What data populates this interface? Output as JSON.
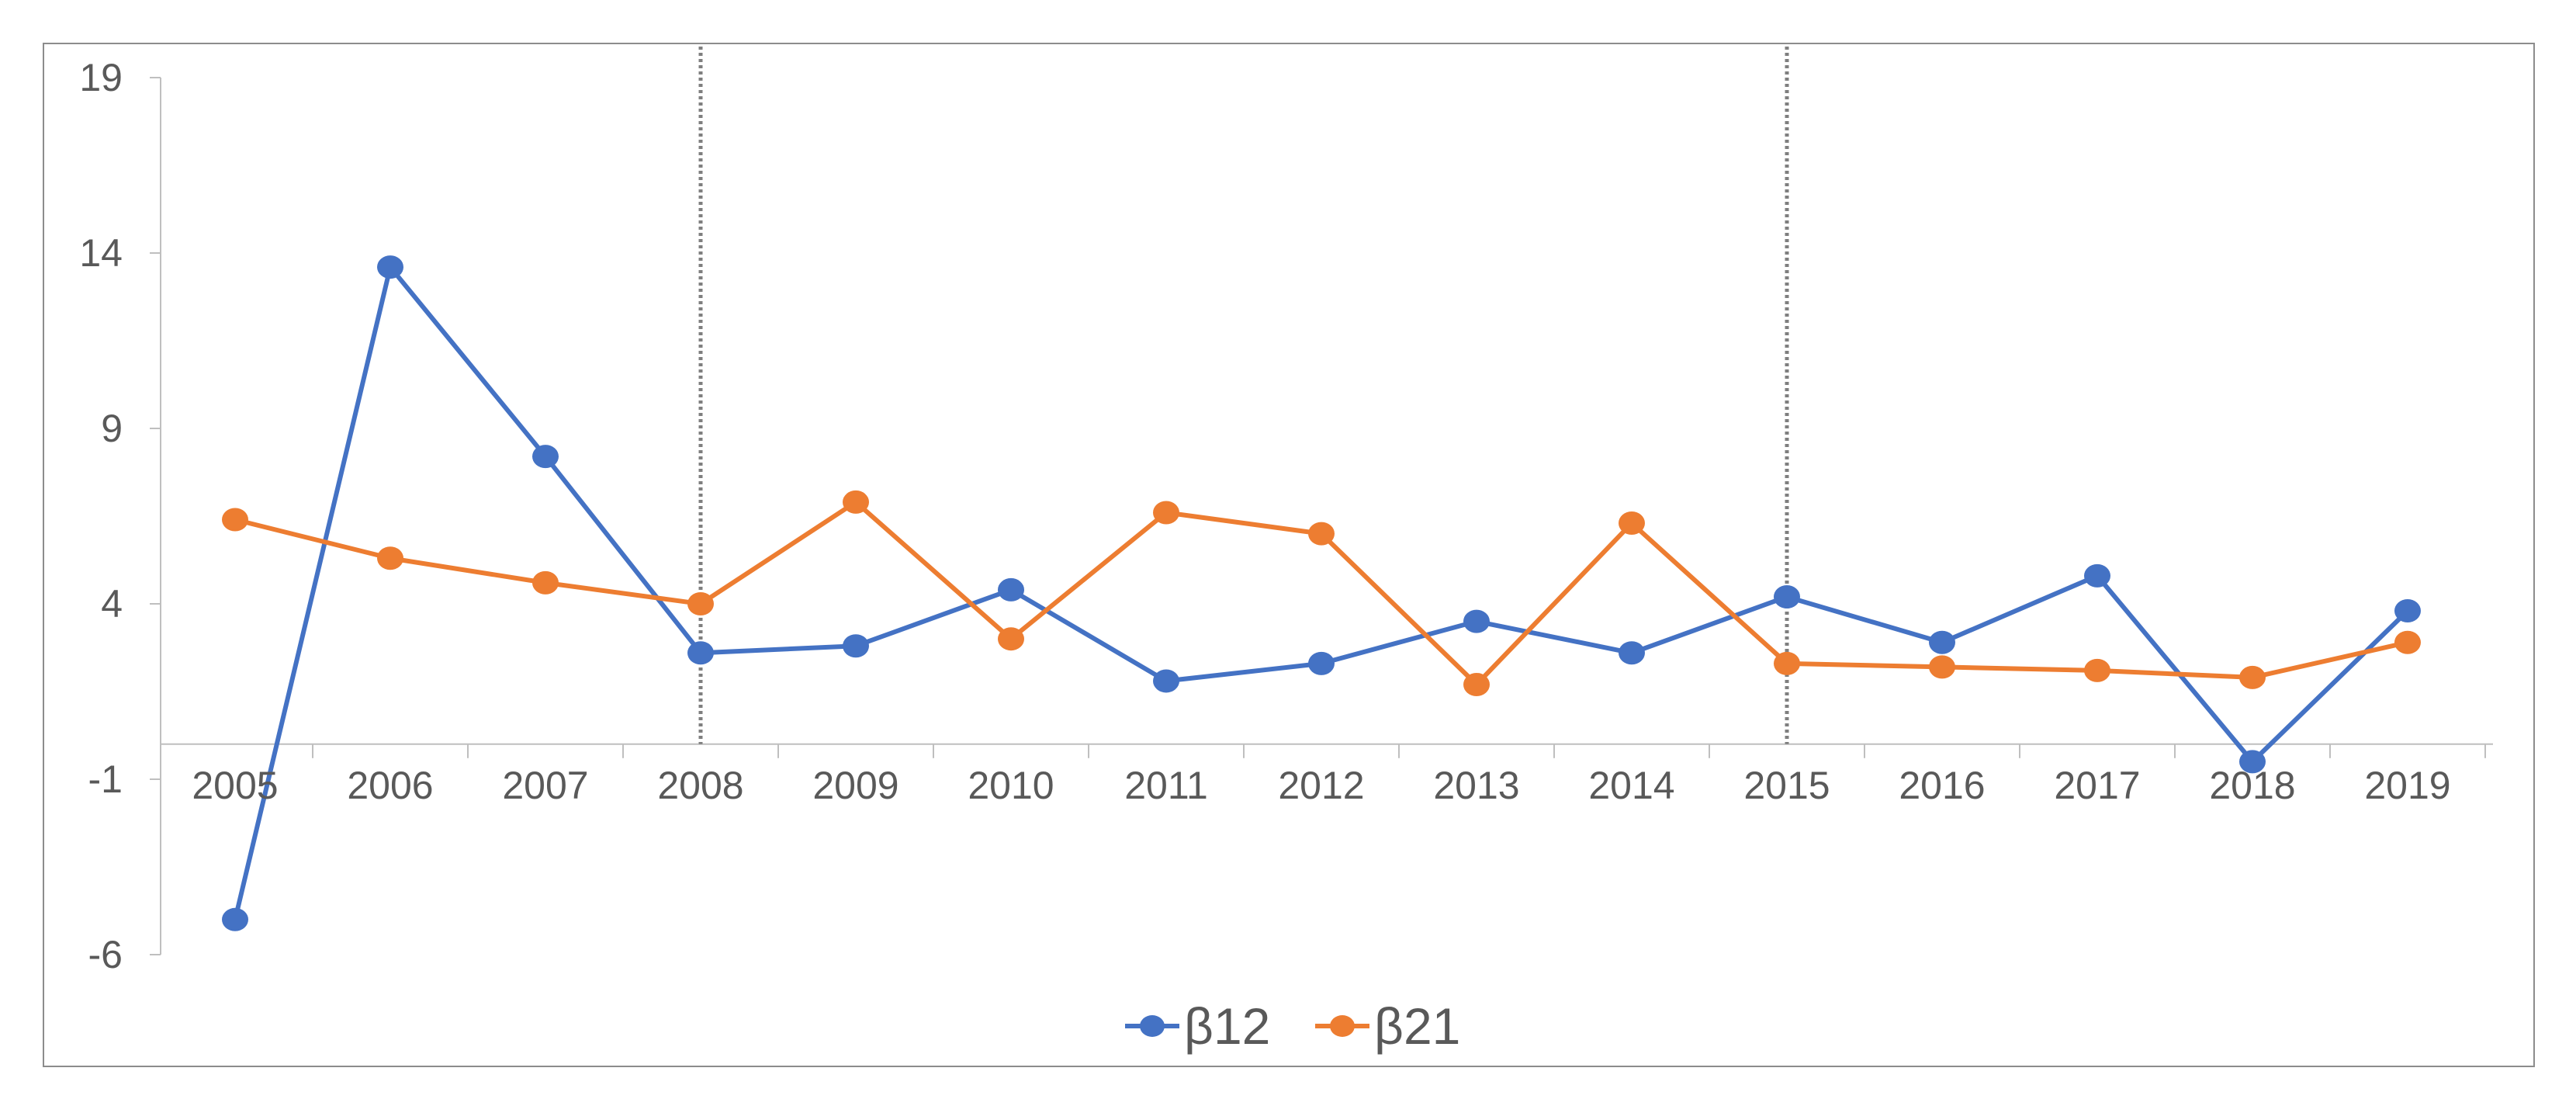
{
  "chart_data": {
    "type": "line",
    "title": "",
    "xlabel": "",
    "ylabel": "",
    "categories": [
      "2005",
      "2006",
      "2007",
      "2008",
      "2009",
      "2010",
      "2011",
      "2012",
      "2013",
      "2014",
      "2015",
      "2016",
      "2017",
      "2018",
      "2019"
    ],
    "y_ticks": [
      "19",
      "14",
      "9",
      "4",
      "-1",
      "-6"
    ],
    "ylim": [
      -6,
      19
    ],
    "grid": false,
    "vertical_markers": [
      "2008",
      "2015"
    ],
    "legend": {
      "position": "bottom",
      "entries": [
        "β12",
        "β21"
      ]
    },
    "series": [
      {
        "name": "β12",
        "color": "#4472C4",
        "values": [
          -5.0,
          13.6,
          8.2,
          2.6,
          2.8,
          4.4,
          1.8,
          2.3,
          3.5,
          2.6,
          4.2,
          2.9,
          4.8,
          -0.5,
          3.8
        ]
      },
      {
        "name": "β21",
        "color": "#ED7D31",
        "values": [
          6.4,
          5.3,
          4.6,
          4.0,
          6.9,
          3.0,
          6.6,
          6.0,
          1.7,
          6.3,
          2.3,
          2.2,
          2.1,
          1.9,
          2.9
        ]
      }
    ]
  }
}
